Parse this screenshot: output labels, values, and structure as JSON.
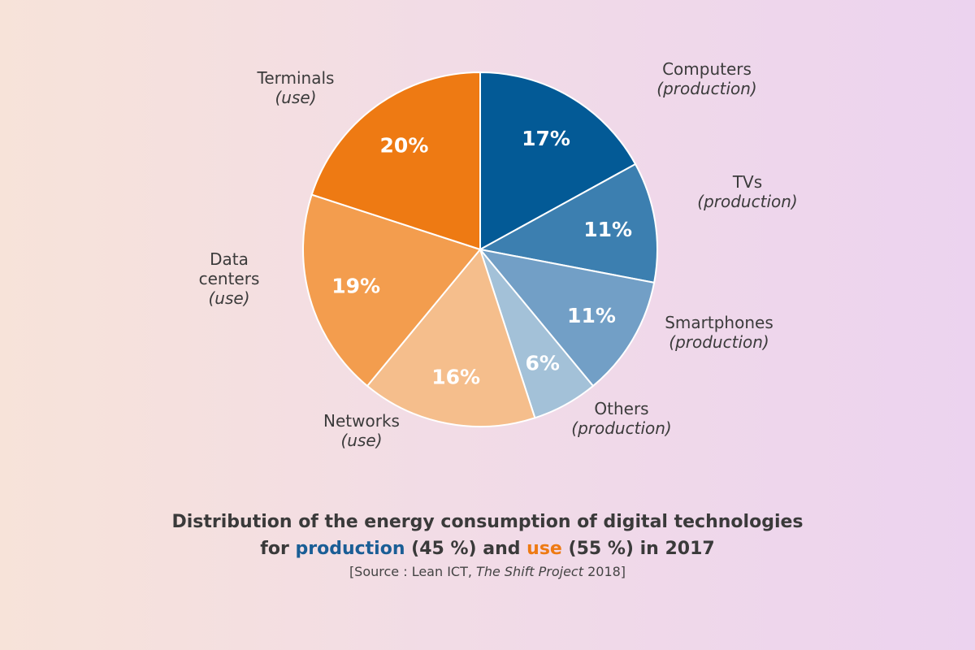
{
  "chart_data": {
    "type": "pie",
    "title_line1": "Distribution of the energy consumption of digital technologies",
    "title_line2": {
      "prefix": "for ",
      "production_word": "production",
      "production_pct": " (45 %) and ",
      "use_word": "use",
      "use_pct": " (55 %) in 2017"
    },
    "source": {
      "prefix": "[Source : Lean ICT, ",
      "italic": "The Shift Project",
      "suffix": " 2018]"
    },
    "slices": [
      {
        "name": "Computers",
        "type": "(production)",
        "value": 17,
        "label": "17%",
        "color": "#035a96"
      },
      {
        "name": "TVs",
        "type": "(production)",
        "value": 11,
        "label": "11%",
        "color": "#3c7fb0"
      },
      {
        "name": "Smartphones",
        "type": "(production)",
        "value": 11,
        "label": "11%",
        "color": "#729fc6"
      },
      {
        "name": "Others",
        "type": "(production)",
        "value": 6,
        "label": "6%",
        "color": "#a3c1d8"
      },
      {
        "name": "Networks",
        "type": "(use)",
        "value": 16,
        "label": "16%",
        "color": "#f5be8c"
      },
      {
        "name": "Data centers",
        "type": "(use)",
        "value": 19,
        "label": "19%",
        "color": "#f39d4e"
      },
      {
        "name": "Terminals",
        "type": "(use)",
        "value": 20,
        "label": "20%",
        "color": "#ee7a13"
      }
    ],
    "colors": {
      "production": "#1a5e96",
      "use": "#ee7a13"
    }
  }
}
